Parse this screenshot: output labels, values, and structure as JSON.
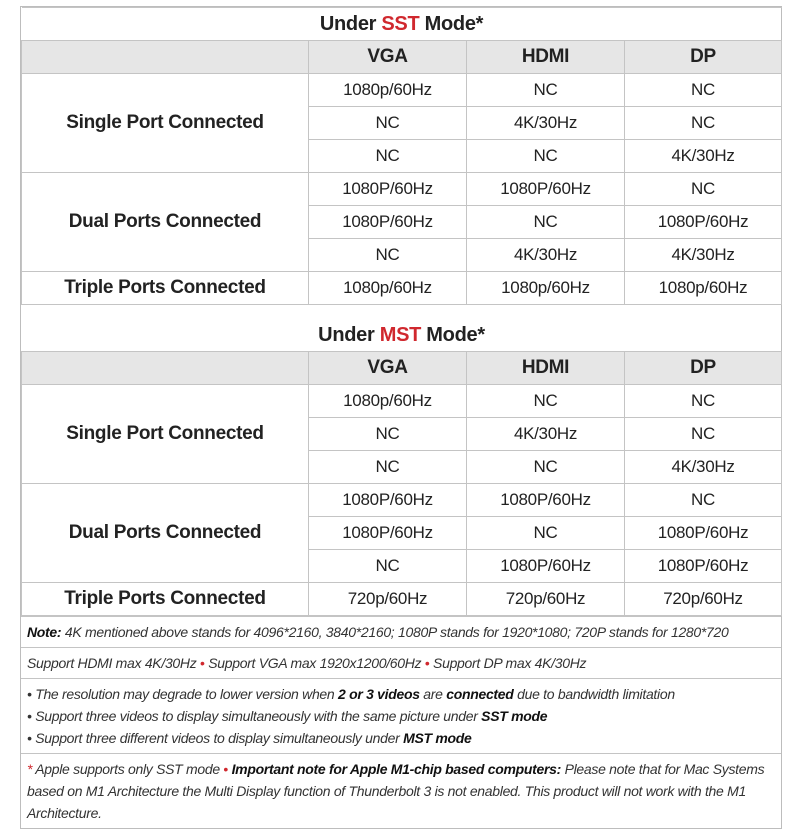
{
  "colors": {
    "accent_red": "#d0282e",
    "header_bg": "#e6e6e6",
    "border": "#c4c4c4"
  },
  "sections": [
    {
      "title": {
        "prefix": "Under ",
        "mode": "SST",
        "suffix": " Mode*"
      },
      "headers": [
        "VGA",
        "HDMI",
        "DP"
      ],
      "groups": [
        {
          "label": "Single Port Connected",
          "rows": [
            [
              "1080p/60Hz",
              "NC",
              "NC"
            ],
            [
              "NC",
              "4K/30Hz",
              "NC"
            ],
            [
              "NC",
              "NC",
              "4K/30Hz"
            ]
          ]
        },
        {
          "label": "Dual Ports Connected",
          "rows": [
            [
              "1080P/60Hz",
              "1080P/60Hz",
              "NC"
            ],
            [
              "1080P/60Hz",
              "NC",
              "1080P/60Hz"
            ],
            [
              "NC",
              "4K/30Hz",
              "4K/30Hz"
            ]
          ]
        },
        {
          "label": "Triple Ports Connected",
          "rows": [
            [
              "1080p/60Hz",
              "1080p/60Hz",
              "1080p/60Hz"
            ]
          ]
        }
      ]
    },
    {
      "title": {
        "prefix": "Under ",
        "mode": "MST",
        "suffix": " Mode*"
      },
      "headers": [
        "VGA",
        "HDMI",
        "DP"
      ],
      "groups": [
        {
          "label": "Single Port Connected",
          "rows": [
            [
              "1080p/60Hz",
              "NC",
              "NC"
            ],
            [
              "NC",
              "4K/30Hz",
              "NC"
            ],
            [
              "NC",
              "NC",
              "4K/30Hz"
            ]
          ]
        },
        {
          "label": "Dual Ports Connected",
          "rows": [
            [
              "1080P/60Hz",
              "1080P/60Hz",
              "NC"
            ],
            [
              "1080P/60Hz",
              "NC",
              "1080P/60Hz"
            ],
            [
              "NC",
              "1080P/60Hz",
              "1080P/60Hz"
            ]
          ]
        },
        {
          "label": "Triple Ports Connected",
          "rows": [
            [
              "720p/60Hz",
              "720p/60Hz",
              "720p/60Hz"
            ]
          ]
        }
      ]
    }
  ],
  "notes": {
    "note_label": "Note:",
    "note_text": " 4K mentioned above stands for 4096*2160, 3840*2160; 1080P stands for 1920*1080; 720P stands for 1280*720",
    "support": [
      "Support HDMI max 4K/30Hz",
      "Support VGA max 1920x1200/60Hz",
      "Support DP max 4K/30Hz"
    ],
    "bullet_sep": " • ",
    "bullet1_a": "• The resolution may degrade to lower version when ",
    "bullet1_b": "2 or 3 videos",
    "bullet1_c": " are ",
    "bullet1_d": "connected",
    "bullet1_e": " due to bandwidth limitation",
    "bullet2_a": "• Support three videos to display simultaneously with the same picture under ",
    "bullet2_b": "SST mode",
    "bullet3_a": "• Support three different videos to display simultaneously under ",
    "bullet3_b": "MST mode",
    "apple_star": "* ",
    "apple_a": "Apple supports only SST mode",
    "apple_b": "Important note for ",
    "apple_c": "Apple M1-chip",
    "apple_d": " based computers:",
    "apple_e": " Please note that for Mac Systems based on M1 Architecture the Multi Display function of Thunderbolt 3 is not enabled. This product will not work with the M1 Architecture."
  }
}
